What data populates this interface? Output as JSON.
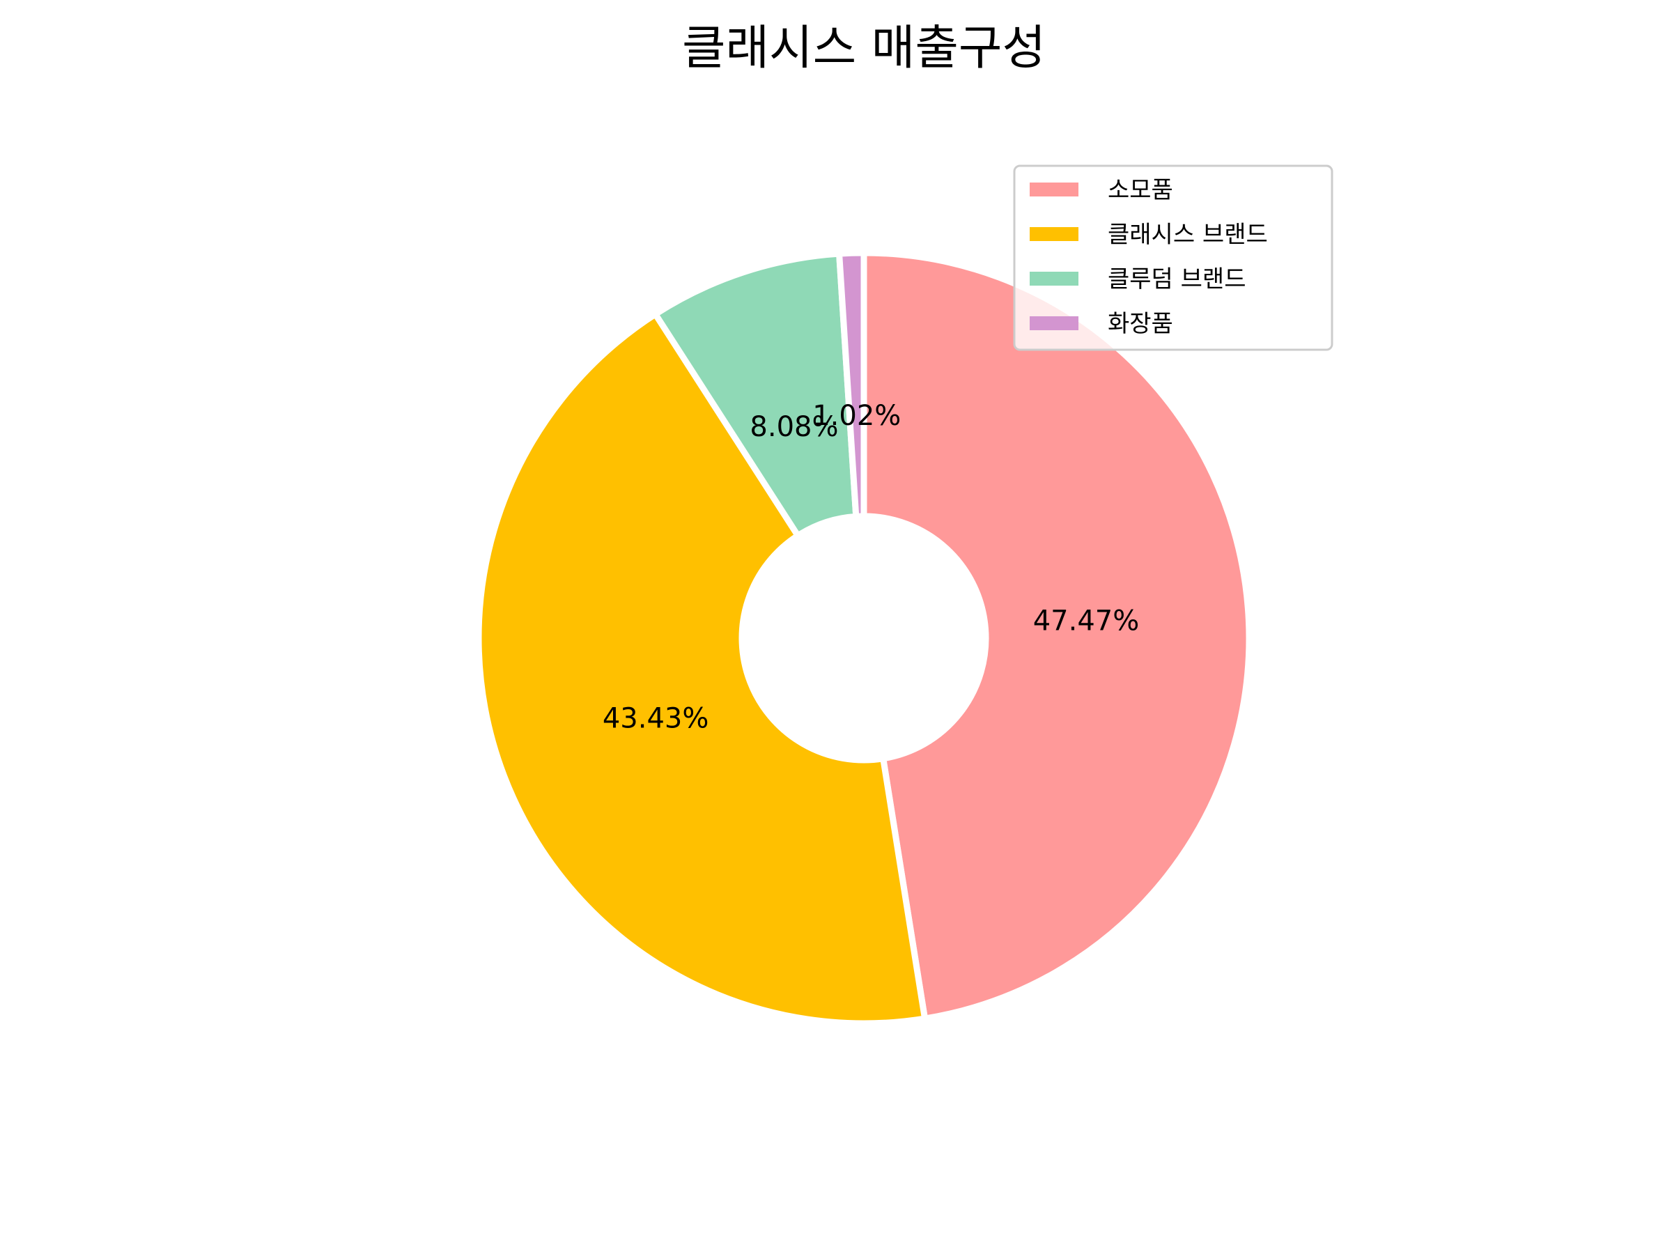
{
  "chart_data": {
    "type": "pie",
    "donut": true,
    "title": "클래시스 매출구성",
    "categories": [
      "소모품",
      "클래시스 브랜드",
      "클루덤 브랜드",
      "화장품"
    ],
    "values": [
      47.47,
      43.43,
      8.08,
      1.02
    ],
    "value_labels": [
      "47.47%",
      "43.43%",
      "8.08%",
      "1.02%"
    ],
    "colors": [
      "#ff9999",
      "#ffc000",
      "#8fd9b6",
      "#d395d0"
    ],
    "start_angle_deg": 90,
    "direction": "clockwise",
    "legend": {
      "placement": "top-right",
      "entries": [
        "소모품",
        "클래시스 브랜드",
        "클루덤 브랜드",
        "화장품"
      ]
    }
  }
}
